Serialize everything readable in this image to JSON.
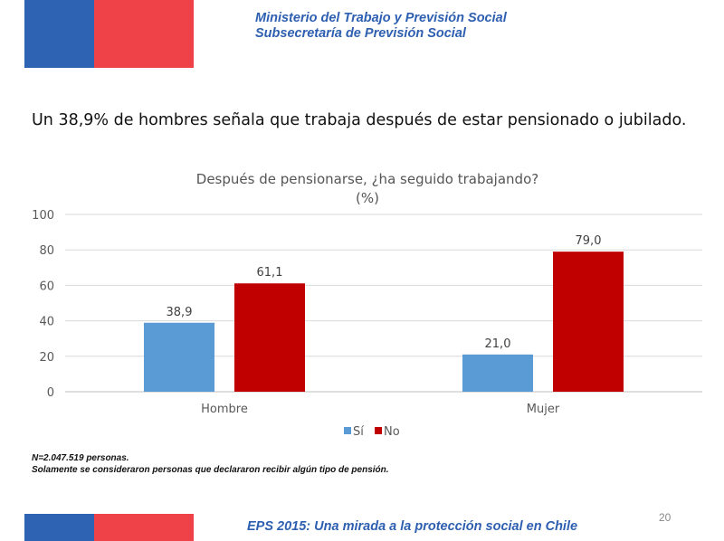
{
  "header": {
    "line1": "Ministerio  del Trabajo y Previsión  Social",
    "line2": "Subsecretaría  de Previsión  Social"
  },
  "headline": "Un 38,9% de hombres señala que trabaja después de estar pensionado o jubilado.",
  "chart_data": {
    "type": "bar",
    "title": "Después de pensionarse, ¿ha seguido trabajando?",
    "subtitle": "(%)",
    "categories": [
      "Hombre",
      "Mujer"
    ],
    "series": [
      {
        "name": "Sí",
        "values": [
          38.9,
          21.0
        ],
        "labels": [
          "38,9",
          "21,0"
        ],
        "color": "#5b9bd5"
      },
      {
        "name": "No",
        "values": [
          61.1,
          79.0
        ],
        "labels": [
          "61,1",
          "79,0"
        ],
        "color": "#c00000"
      }
    ],
    "ylim": [
      0,
      100
    ],
    "yticks": [
      0,
      20,
      40,
      60,
      80,
      100
    ],
    "grid": true,
    "legend_position": "bottom"
  },
  "notes": {
    "line1": "N=2.047.519 personas.",
    "line2": "Solamente se consideraron personas que declararon recibir algún tipo de pensión."
  },
  "footer": {
    "text": "EPS 2015:  Una mirada a la protección social en Chile",
    "page_number": "20"
  },
  "colors": {
    "flag_blue": "#2e62b3",
    "flag_red": "#ef4248",
    "header_text": "#2e5fb0"
  }
}
